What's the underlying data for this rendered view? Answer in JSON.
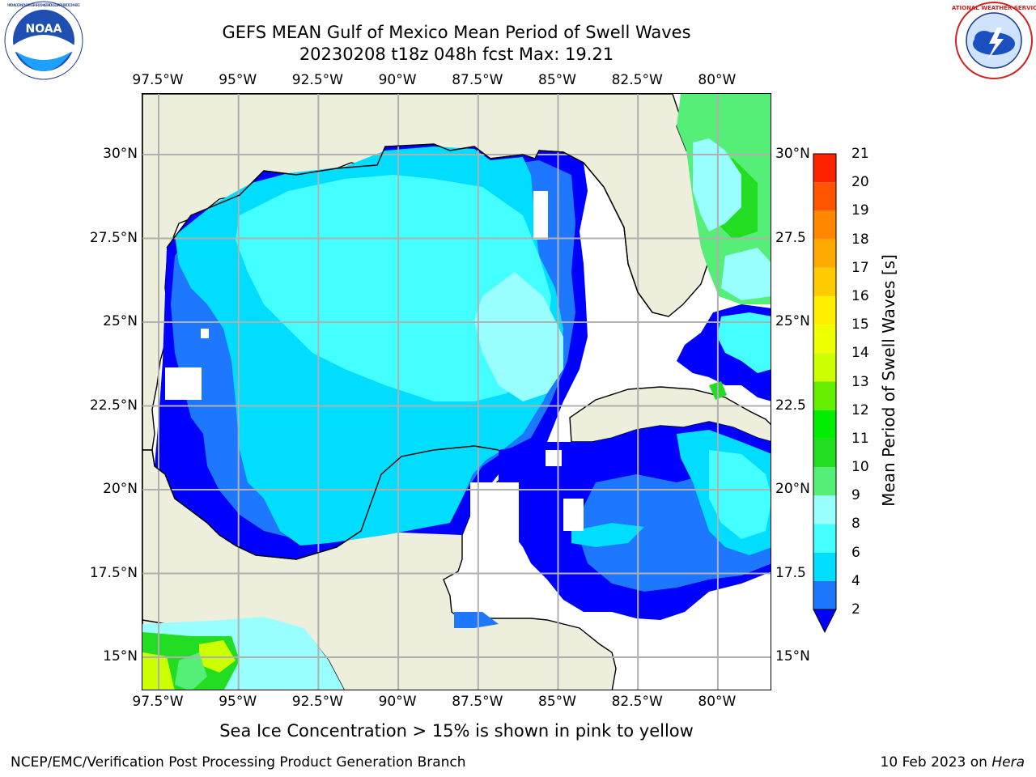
{
  "header": {
    "title_line1": "GEFS MEAN Gulf of Mexico Mean Period of Swell Waves",
    "title_line2": "20230208 t18z 048h fcst   Max: 19.21"
  },
  "logos": {
    "left_text": "NOAA",
    "left_ring_text": "NATIONAL OCEANIC AND ATMOSPHERIC ADMINISTRATION · U.S. DEPARTMENT OF COMMERCE",
    "right_ring_text": "NATIONAL WEATHER SERVICE"
  },
  "map": {
    "lon_labels": [
      "97.5°W",
      "95°W",
      "92.5°W",
      "90°W",
      "87.5°W",
      "85°W",
      "82.5°W",
      "80°W"
    ],
    "lat_labels_left": [
      "30°N",
      "27.5°N",
      "25°N",
      "22.5°N",
      "20°N",
      "17.5°N",
      "15°N"
    ],
    "lat_labels_right": [
      "30°N",
      "27.5",
      "25°N",
      "22.5",
      "20°N",
      "17.5",
      "15°N"
    ],
    "land_color": "#eeeedd",
    "ocean_nodata_color": "#ffffff",
    "grid_color": "#b0b0b0"
  },
  "colorbar": {
    "title": "Mean Period of Swell Waves [s]",
    "ticks": [
      "2",
      "4",
      "6",
      "8",
      "9",
      "10",
      "11",
      "12",
      "13",
      "14",
      "15",
      "16",
      "17",
      "18",
      "19",
      "20",
      "21"
    ],
    "colors": [
      "#0000ff",
      "#1e78ff",
      "#00ddff",
      "#44ffff",
      "#99ffff",
      "#55ee77",
      "#22dd22",
      "#00ee00",
      "#66ee00",
      "#ccff00",
      "#eeff00",
      "#ffee00",
      "#ffcc00",
      "#ffaa00",
      "#ff8800",
      "#ff5500",
      "#ff2200",
      "#ff0000"
    ],
    "extend": "min"
  },
  "footer": {
    "note": "Sea Ice Concentration > 15% is shown in pink to yellow",
    "credit_left": "NCEP/EMC/Verification Post Processing Product Generation Branch",
    "credit_date": "10 Feb 2023 on ",
    "credit_host": "Hera"
  }
}
